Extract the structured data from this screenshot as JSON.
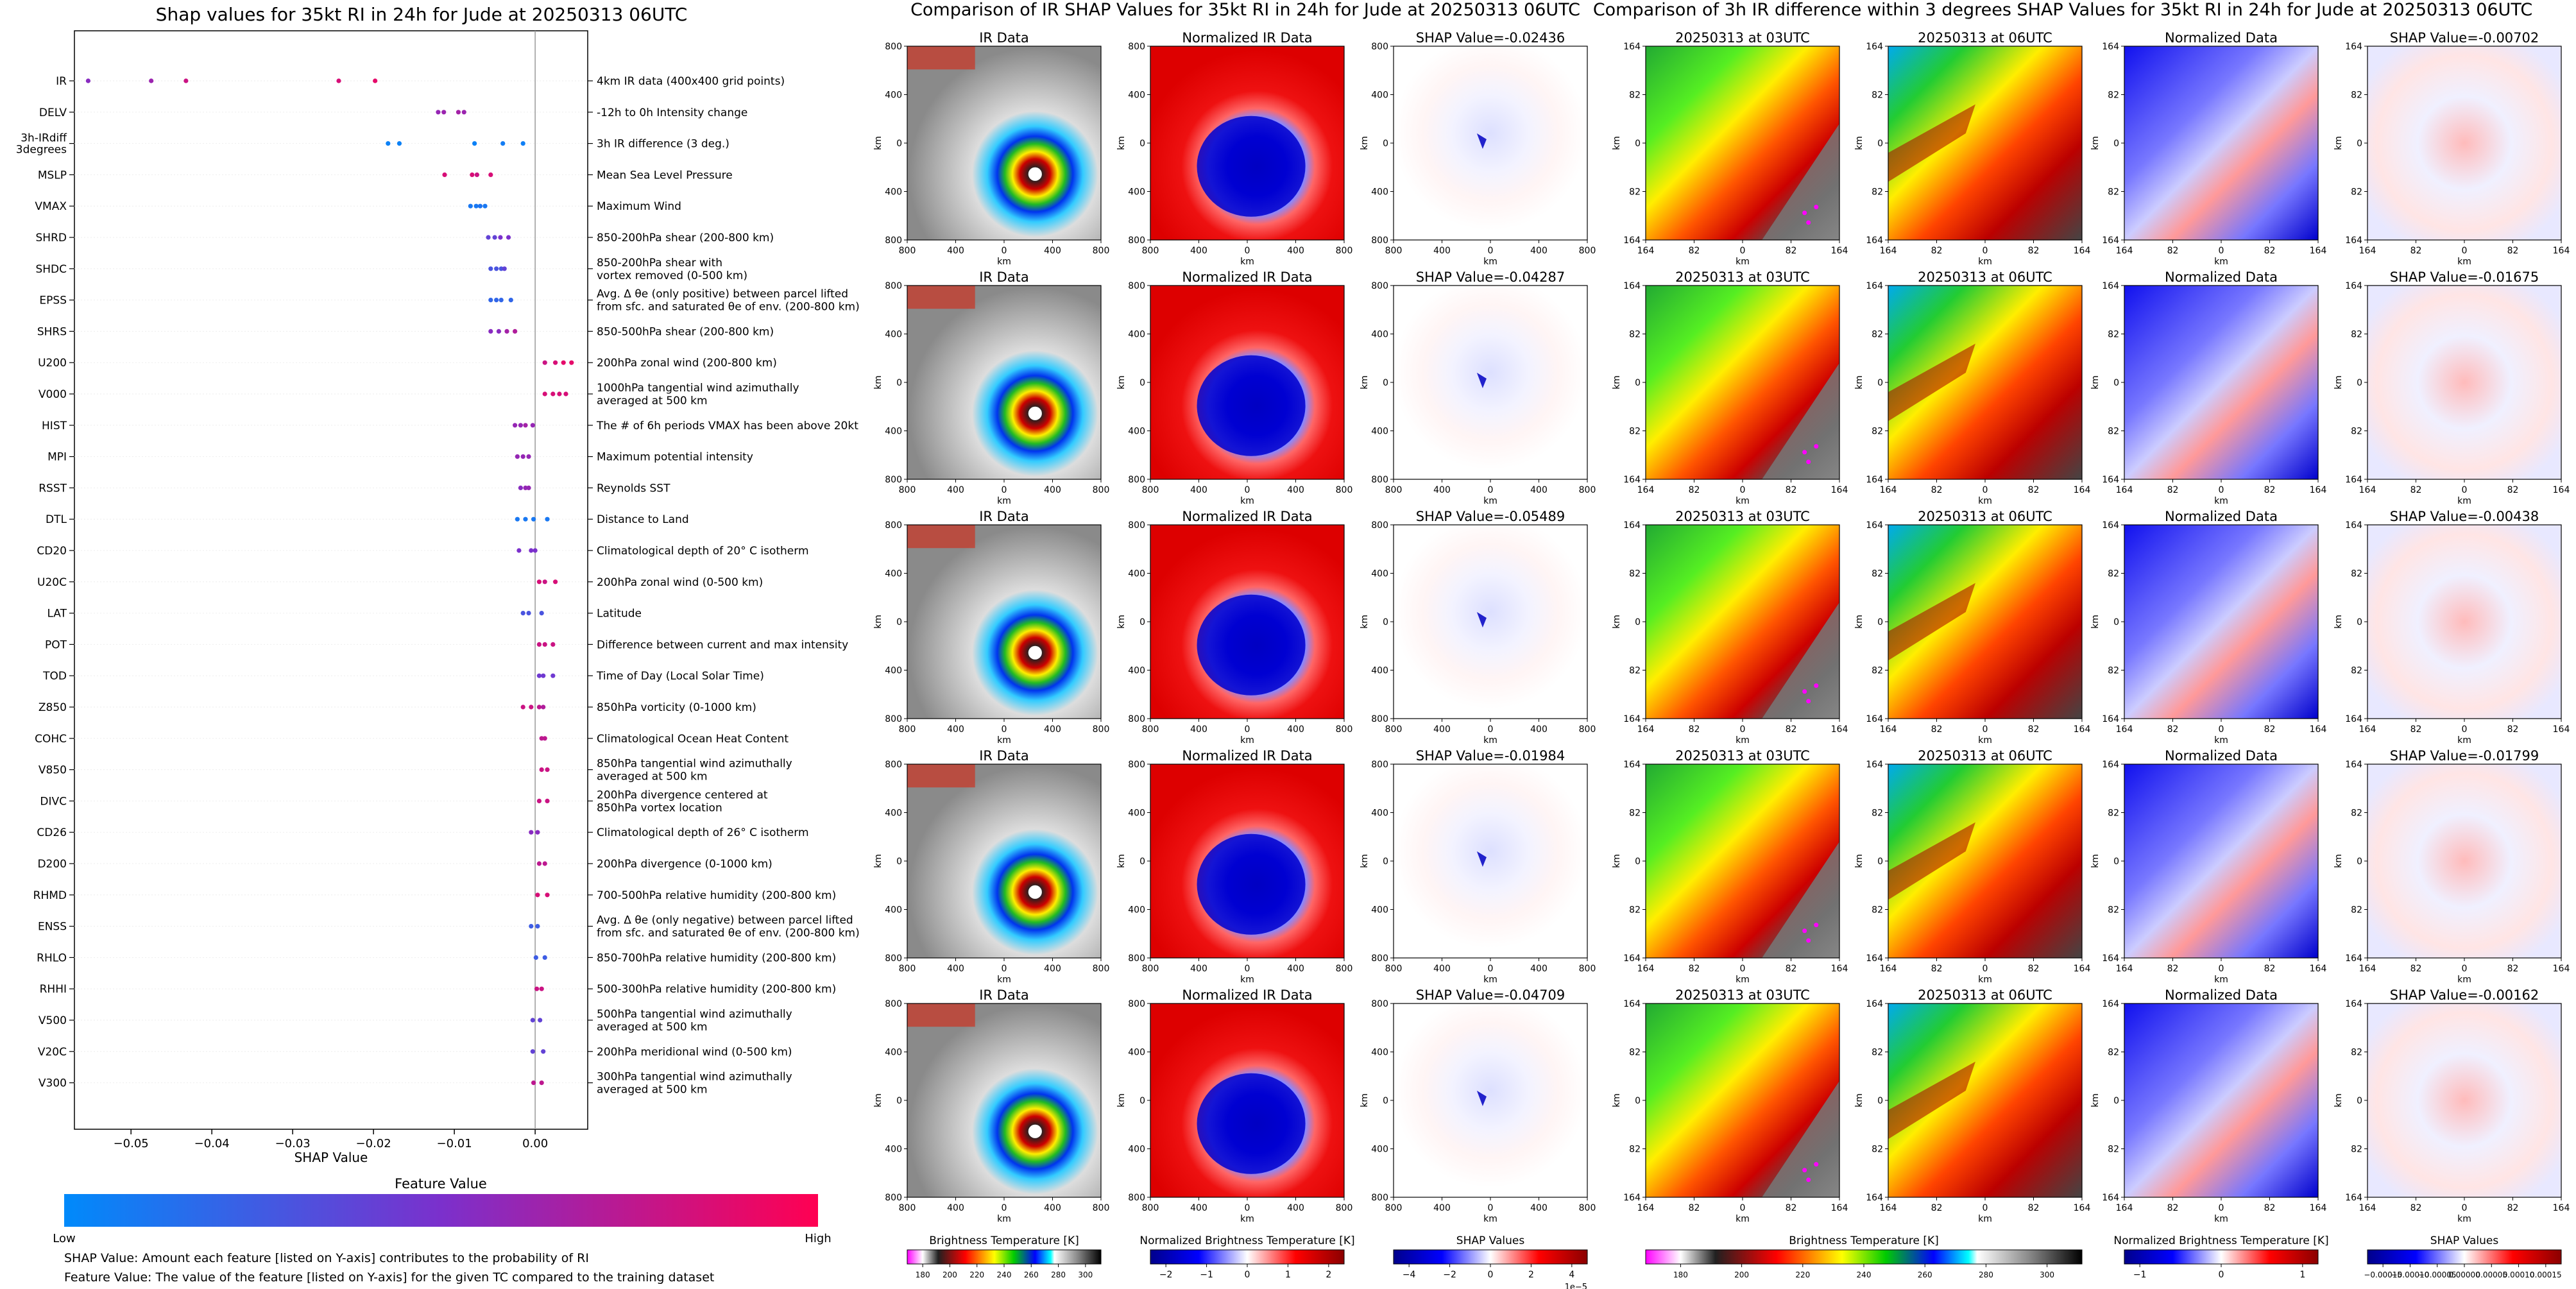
{
  "chart_data": [
    {
      "type": "scatter",
      "title": "Shap values for 35kt RI in 24h for Jude at 20250313 06UTC",
      "xlabel": "SHAP Value",
      "ylabel": "",
      "xlim": [
        -0.057,
        0.0065
      ],
      "xticks": [
        -0.05,
        -0.04,
        -0.03,
        -0.02,
        -0.01,
        0.0
      ],
      "xtick_labels": [
        "−0.05",
        "−0.04",
        "−0.03",
        "−0.02",
        "−0.01",
        "0.00"
      ],
      "features": [
        {
          "name": "IR",
          "desc": [
            "4km IR data (400x400 grid points)"
          ],
          "pts": [
            [
              -0.0553,
              0.55
            ],
            [
              -0.0475,
              0.62
            ],
            [
              -0.0432,
              0.8
            ],
            [
              -0.0243,
              0.85
            ],
            [
              -0.0198,
              0.9
            ]
          ]
        },
        {
          "name": "DELV",
          "desc": [
            "-12h to 0h Intensity change"
          ],
          "pts": [
            [
              -0.012,
              0.6
            ],
            [
              -0.0113,
              0.62
            ],
            [
              -0.0095,
              0.65
            ],
            [
              -0.0088,
              0.62
            ]
          ]
        },
        {
          "name": "3h-IRdiff\n3degrees",
          "desc": [
            "3h IR difference (3 deg.)"
          ],
          "pts": [
            [
              -0.0182,
              0.05
            ],
            [
              -0.0168,
              0.05
            ],
            [
              -0.0075,
              0.05
            ],
            [
              -0.004,
              0.08
            ],
            [
              -0.0015,
              0.06
            ]
          ]
        },
        {
          "name": "MSLP",
          "desc": [
            "Mean Sea Level Pressure"
          ],
          "pts": [
            [
              -0.0112,
              0.85
            ],
            [
              -0.0078,
              0.85
            ],
            [
              -0.0072,
              0.8
            ],
            [
              -0.0055,
              0.85
            ]
          ]
        },
        {
          "name": "VMAX",
          "desc": [
            "Maximum Wind"
          ],
          "pts": [
            [
              -0.008,
              0.1
            ],
            [
              -0.0073,
              0.1
            ],
            [
              -0.0068,
              0.12
            ],
            [
              -0.0062,
              0.1
            ]
          ]
        },
        {
          "name": "SHRD",
          "desc": [
            "850-200hPa shear (200-800 km)"
          ],
          "pts": [
            [
              -0.0058,
              0.4
            ],
            [
              -0.005,
              0.4
            ],
            [
              -0.0043,
              0.5
            ],
            [
              -0.0033,
              0.5
            ]
          ]
        },
        {
          "name": "SHDC",
          "desc": [
            "850-200hPa shear with",
            "vortex removed (0-500 km)"
          ],
          "pts": [
            [
              -0.0055,
              0.3
            ],
            [
              -0.0048,
              0.3
            ],
            [
              -0.0042,
              0.3
            ],
            [
              -0.0038,
              0.4
            ]
          ]
        },
        {
          "name": "EPSS",
          "desc": [
            "Avg. Δ θe (only positive) between parcel lifted",
            "from sfc. and saturated θe of env. (200-800 km)"
          ],
          "pts": [
            [
              -0.0055,
              0.2
            ],
            [
              -0.0048,
              0.2
            ],
            [
              -0.0042,
              0.2
            ],
            [
              -0.003,
              0.2
            ]
          ]
        },
        {
          "name": "SHRS",
          "desc": [
            "850-500hPa shear (200-800 km)"
          ],
          "pts": [
            [
              -0.0055,
              0.55
            ],
            [
              -0.0045,
              0.55
            ],
            [
              -0.0035,
              0.65
            ],
            [
              -0.0025,
              0.7
            ]
          ]
        },
        {
          "name": "U200",
          "desc": [
            "200hPa zonal wind (200-800 km)"
          ],
          "pts": [
            [
              0.0012,
              0.8
            ],
            [
              0.0025,
              0.85
            ],
            [
              0.0035,
              0.9
            ],
            [
              0.0045,
              0.9
            ]
          ]
        },
        {
          "name": "V000",
          "desc": [
            "1000hPa tangential wind azimuthally",
            "averaged at 500 km"
          ],
          "pts": [
            [
              0.0012,
              0.85
            ],
            [
              0.0022,
              0.85
            ],
            [
              0.003,
              0.85
            ],
            [
              0.0038,
              0.85
            ]
          ]
        },
        {
          "name": "HIST",
          "desc": [
            "The # of 6h periods VMAX has been above 20kt"
          ],
          "pts": [
            [
              -0.0025,
              0.6
            ],
            [
              -0.0018,
              0.6
            ],
            [
              -0.0012,
              0.65
            ],
            [
              -0.0003,
              0.6
            ]
          ]
        },
        {
          "name": "MPI",
          "desc": [
            "Maximum potential intensity"
          ],
          "pts": [
            [
              -0.0022,
              0.6
            ],
            [
              -0.0015,
              0.6
            ],
            [
              -0.0008,
              0.6
            ]
          ]
        },
        {
          "name": "RSST",
          "desc": [
            "Reynolds SST"
          ],
          "pts": [
            [
              -0.0018,
              0.55
            ],
            [
              -0.0012,
              0.6
            ],
            [
              -0.0008,
              0.6
            ]
          ]
        },
        {
          "name": "DTL",
          "desc": [
            "Distance to Land"
          ],
          "pts": [
            [
              -0.0022,
              0.1
            ],
            [
              -0.0012,
              0.1
            ],
            [
              -0.0002,
              0.1
            ],
            [
              0.0015,
              0.1
            ]
          ]
        },
        {
          "name": "CD20",
          "desc": [
            "Climatological depth of 20° C isotherm"
          ],
          "pts": [
            [
              -0.002,
              0.5
            ],
            [
              -0.0005,
              0.5
            ],
            [
              0.0,
              0.5
            ]
          ]
        },
        {
          "name": "U20C",
          "desc": [
            "200hPa zonal wind (0-500 km)"
          ],
          "pts": [
            [
              0.0005,
              0.85
            ],
            [
              0.0012,
              0.8
            ],
            [
              0.0025,
              0.85
            ]
          ]
        },
        {
          "name": "LAT",
          "desc": [
            "Latitude"
          ],
          "pts": [
            [
              -0.0015,
              0.3
            ],
            [
              -0.0008,
              0.3
            ],
            [
              0.0008,
              0.3
            ]
          ]
        },
        {
          "name": "POT",
          "desc": [
            "Difference between current and max intensity"
          ],
          "pts": [
            [
              0.0005,
              0.8
            ],
            [
              0.0012,
              0.8
            ],
            [
              0.0022,
              0.8
            ]
          ]
        },
        {
          "name": "TOD",
          "desc": [
            "Time of Day (Local Solar Time)"
          ],
          "pts": [
            [
              0.0005,
              0.45
            ],
            [
              0.001,
              0.45
            ],
            [
              0.0022,
              0.45
            ]
          ]
        },
        {
          "name": "Z850",
          "desc": [
            "850hPa vorticity (0-1000 km)"
          ],
          "pts": [
            [
              -0.0015,
              0.8
            ],
            [
              -0.0005,
              0.8
            ],
            [
              0.0005,
              0.75
            ],
            [
              0.001,
              0.7
            ]
          ]
        },
        {
          "name": "COHC",
          "desc": [
            "Climatological Ocean Heat Content"
          ],
          "pts": [
            [
              0.0008,
              0.75
            ],
            [
              0.0012,
              0.75
            ]
          ]
        },
        {
          "name": "V850",
          "desc": [
            "850hPa tangential wind azimuthally",
            "averaged at 500 km"
          ],
          "pts": [
            [
              0.0008,
              0.8
            ],
            [
              0.0015,
              0.8
            ]
          ]
        },
        {
          "name": "DIVC",
          "desc": [
            "200hPa divergence centered at",
            "850hPa vortex location"
          ],
          "pts": [
            [
              0.0005,
              0.8
            ],
            [
              0.0015,
              0.8
            ]
          ]
        },
        {
          "name": "CD26",
          "desc": [
            "Climatological depth of 26° C isotherm"
          ],
          "pts": [
            [
              -0.0005,
              0.55
            ],
            [
              0.0003,
              0.55
            ]
          ]
        },
        {
          "name": "D200",
          "desc": [
            "200hPa divergence (0-1000 km)"
          ],
          "pts": [
            [
              0.0005,
              0.75
            ],
            [
              0.0012,
              0.75
            ]
          ]
        },
        {
          "name": "RHMD",
          "desc": [
            "700-500hPa relative humidity (200-800 km)"
          ],
          "pts": [
            [
              0.0003,
              0.85
            ],
            [
              0.0015,
              0.85
            ]
          ]
        },
        {
          "name": "ENSS",
          "desc": [
            "Avg. Δ θe (only negative) between parcel lifted",
            "from sfc. and saturated θe of env. (200-800 km)"
          ],
          "pts": [
            [
              -0.0005,
              0.25
            ],
            [
              0.0003,
              0.25
            ]
          ]
        },
        {
          "name": "RHLO",
          "desc": [
            "850-700hPa relative humidity (200-800 km)"
          ],
          "pts": [
            [
              0.0001,
              0.25
            ],
            [
              0.0012,
              0.25
            ]
          ]
        },
        {
          "name": "RHHI",
          "desc": [
            "500-300hPa relative humidity (200-800 km)"
          ],
          "pts": [
            [
              0.0002,
              0.8
            ],
            [
              0.0008,
              0.8
            ]
          ]
        },
        {
          "name": "V500",
          "desc": [
            "500hPa tangential wind azimuthally",
            "averaged at 500 km"
          ],
          "pts": [
            [
              -0.0003,
              0.4
            ],
            [
              0.0006,
              0.4
            ]
          ]
        },
        {
          "name": "V20C",
          "desc": [
            "200hPa meridional wind (0-500 km)"
          ],
          "pts": [
            [
              -0.0003,
              0.4
            ],
            [
              0.001,
              0.4
            ]
          ]
        },
        {
          "name": "V300",
          "desc": [
            "300hPa tangential wind azimuthally",
            "averaged at 500 km"
          ],
          "pts": [
            [
              -0.0002,
              0.75
            ],
            [
              0.0008,
              0.75
            ]
          ]
        }
      ],
      "colorbar": {
        "title": "Feature Value",
        "low": "Low",
        "high": "High",
        "colors": [
          "#008afb",
          "#7b30cc",
          "#ff0052"
        ]
      },
      "notes": [
        "SHAP Value: Amount each feature [listed on Y-axis] contributes to the probability of RI",
        "Feature Value: The value of the feature [listed on Y-axis] for the given TC compared to the training dataset"
      ]
    },
    {
      "type": "heatmap",
      "title": "Comparison of IR SHAP Values for 35kt RI in 24h for Jude at 20250313 06UTC",
      "columns": [
        "IR Data",
        "Normalized IR Data",
        "SHAP Value"
      ],
      "shap_values": [
        "-0.02436",
        "-0.04287",
        "-0.05489",
        "-0.01984",
        "-0.04709"
      ],
      "shap_prefix": "SHAP Value=",
      "xticks": [
        "800",
        "400",
        "0",
        "400",
        "800"
      ],
      "yticks": [
        "800",
        "400",
        "0",
        "400",
        "800"
      ],
      "xlabel": "km",
      "ylabel": "km",
      "colorbars": [
        {
          "label": "Brightness Temperature [K]",
          "ticks": [
            "180",
            "200",
            "220",
            "240",
            "260",
            "280",
            "300"
          ],
          "colors": [
            "#ff00ff",
            "#ffffff",
            "#202020",
            "#ff0000",
            "#ffff00",
            "#00cc00",
            "#0000ff",
            "#00ffff",
            "#ffffff",
            "#888888",
            "#000000"
          ]
        },
        {
          "label": "Normalized Brightness Temperature [K]",
          "ticks": [
            "−2",
            "−1",
            "0",
            "1",
            "2"
          ],
          "colors": [
            "#00008b",
            "#0000ff",
            "#ffffff",
            "#ff0000",
            "#8b0000"
          ]
        },
        {
          "label": "SHAP Values",
          "ticks": [
            "−4",
            "−2",
            "0",
            "2",
            "4"
          ],
          "offset": "1e−5",
          "colors": [
            "#00008b",
            "#0000ff",
            "#ffffff",
            "#ff0000",
            "#8b0000"
          ]
        }
      ]
    },
    {
      "type": "heatmap",
      "title": "Comparison of 3h IR difference within 3 degrees SHAP Values for 35kt RI in 24h for Jude at 20250313 06UTC",
      "columns": [
        "20250313 at 03UTC",
        "20250313 at 06UTC",
        "Normalized Data",
        "SHAP Value"
      ],
      "shap_values": [
        "-0.00702",
        "-0.01675",
        "-0.00438",
        "-0.01799",
        "-0.00162"
      ],
      "shap_prefix": "SHAP Value=",
      "xticks": [
        "164",
        "82",
        "0",
        "82",
        "164"
      ],
      "yticks": [
        "164",
        "82",
        "0",
        "82",
        "164"
      ],
      "xlabel": "km",
      "ylabel": "km",
      "colorbars": [
        {
          "label": "Brightness Temperature [K]",
          "ticks": [
            "180",
            "200",
            "220",
            "240",
            "260",
            "280",
            "300"
          ],
          "colors": [
            "#ff00ff",
            "#ffffff",
            "#202020",
            "#ff0000",
            "#ffff00",
            "#00cc00",
            "#0000ff",
            "#00ffff",
            "#ffffff",
            "#888888",
            "#000000"
          ]
        },
        {
          "label": "Normalized Brightness Temperature [K]",
          "ticks": [
            "−1",
            "0",
            "1"
          ],
          "colors": [
            "#00008b",
            "#0000ff",
            "#ffffff",
            "#ff0000",
            "#8b0000"
          ]
        },
        {
          "label": "SHAP Values",
          "ticks": [
            "−0.00015",
            "−0.00010",
            "−0.00005",
            "0.00000",
            "0.00005",
            "0.00010",
            "0.00015"
          ],
          "colors": [
            "#00008b",
            "#0000ff",
            "#ffffff",
            "#ff0000",
            "#8b0000"
          ]
        }
      ]
    }
  ]
}
